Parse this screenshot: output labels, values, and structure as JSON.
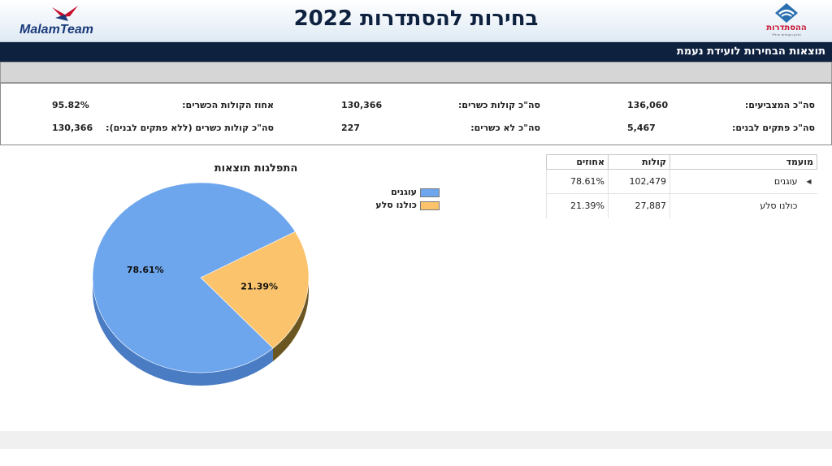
{
  "header": {
    "title": "בחירות להסתדרות 2022",
    "malam_logo_text": "MalamTeam",
    "histadrut_logo_text": "ההסתדרות",
    "histadrut_logo_subtext": "ארגון העובדים הכללי"
  },
  "subtitle": "תוצאות הבחירות לועידת נעמת",
  "summary": {
    "total_voters_label": "סה\"כ המצביעים:",
    "total_voters_value": "136,060",
    "blank_notes_label": "סה\"כ פתקים לבנים:",
    "blank_notes_value": "5,467",
    "valid_votes_label": "סה\"כ קולות כשרים:",
    "valid_votes_value": "130,366",
    "invalid_label": "סה\"כ לא כשרים:",
    "invalid_value": "227",
    "valid_pct_label": "אחוז הקולות הכשרים:",
    "valid_pct_value": "95.82%",
    "valid_no_blank_label": "סה\"כ קולות כשרים (ללא פתקים לבנים):",
    "valid_no_blank_value": "130,366"
  },
  "table": {
    "headers": {
      "party": "מועמד",
      "votes": "קולות",
      "pct": "אחוזים"
    },
    "rows": [
      {
        "party": "עוגנים",
        "votes": "102,479",
        "pct": "78.61%",
        "selected": true
      },
      {
        "party": "כולנו סלע",
        "votes": "27,887",
        "pct": "21.39%",
        "selected": false
      }
    ]
  },
  "chart_data": {
    "type": "pie",
    "title": "התפלגות תוצאות",
    "categories": [
      "עוגנים",
      "כולנו סלע"
    ],
    "values": [
      78.61,
      21.39
    ],
    "data_labels": [
      "78.61%",
      "21.39%"
    ],
    "colors": [
      "#6ea6ee",
      "#fbc46c"
    ],
    "side_colors": [
      "#4a7cc4",
      "#6b5520"
    ],
    "legend_position": "top-right"
  }
}
